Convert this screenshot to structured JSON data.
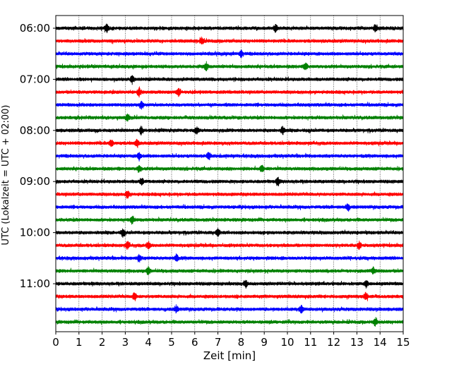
{
  "chart_data": {
    "type": "line",
    "title": "",
    "xlabel": "Zeit  [min]",
    "ylabel": "UTC (Lokalzeit = UTC + 02:00)",
    "xlim": [
      0,
      15
    ],
    "x_ticks": [
      0,
      1,
      2,
      3,
      4,
      5,
      6,
      7,
      8,
      9,
      10,
      11,
      12,
      13,
      14,
      15
    ],
    "x_tick_labels": [
      "0",
      "1",
      "2",
      "3",
      "4",
      "5",
      "6",
      "7",
      "8",
      "9",
      "10",
      "11",
      "12",
      "13",
      "14",
      "15"
    ],
    "y_tick_labels": [
      "06:00",
      "07:00",
      "08:00",
      "09:00",
      "10:00",
      "11:00"
    ],
    "grid": "vertical dotted",
    "trace_colors": [
      "#000000",
      "#ff0000",
      "#0000ff",
      "#008000"
    ],
    "traces": [
      {
        "start": "06:00",
        "color": "#000000",
        "spikes": [
          2.2,
          9.5,
          13.8
        ]
      },
      {
        "start": "06:15",
        "color": "#ff0000",
        "spikes": [
          6.3
        ]
      },
      {
        "start": "06:30",
        "color": "#0000ff",
        "spikes": [
          8.0
        ]
      },
      {
        "start": "06:45",
        "color": "#008000",
        "spikes": [
          6.5,
          10.8
        ]
      },
      {
        "start": "07:00",
        "color": "#000000",
        "spikes": [
          3.3
        ]
      },
      {
        "start": "07:15",
        "color": "#ff0000",
        "spikes": [
          3.6,
          5.3
        ]
      },
      {
        "start": "07:30",
        "color": "#0000ff",
        "spikes": [
          3.7
        ]
      },
      {
        "start": "07:45",
        "color": "#008000",
        "spikes": [
          3.1
        ]
      },
      {
        "start": "08:00",
        "color": "#000000",
        "spikes": [
          3.7,
          6.1,
          9.8
        ]
      },
      {
        "start": "08:15",
        "color": "#ff0000",
        "spikes": [
          2.4,
          3.5
        ]
      },
      {
        "start": "08:30",
        "color": "#0000ff",
        "spikes": [
          3.6,
          6.6
        ]
      },
      {
        "start": "08:45",
        "color": "#008000",
        "spikes": [
          3.6,
          8.9
        ]
      },
      {
        "start": "09:00",
        "color": "#000000",
        "spikes": [
          3.7,
          9.6
        ]
      },
      {
        "start": "09:15",
        "color": "#ff0000",
        "spikes": [
          3.1
        ]
      },
      {
        "start": "09:30",
        "color": "#0000ff",
        "spikes": [
          12.6
        ]
      },
      {
        "start": "09:45",
        "color": "#008000",
        "spikes": [
          3.3
        ]
      },
      {
        "start": "10:00",
        "color": "#000000",
        "spikes": [
          2.9,
          7.0
        ]
      },
      {
        "start": "10:15",
        "color": "#ff0000",
        "spikes": [
          3.1,
          4.0,
          13.1
        ]
      },
      {
        "start": "10:30",
        "color": "#0000ff",
        "spikes": [
          3.6,
          5.2
        ]
      },
      {
        "start": "10:45",
        "color": "#008000",
        "spikes": [
          4.0,
          13.7
        ]
      },
      {
        "start": "11:00",
        "color": "#000000",
        "spikes": [
          8.2,
          13.4
        ]
      },
      {
        "start": "11:15",
        "color": "#ff0000",
        "spikes": [
          3.4,
          13.4
        ]
      },
      {
        "start": "11:30",
        "color": "#0000ff",
        "spikes": [
          5.2,
          10.6
        ]
      },
      {
        "start": "11:45",
        "color": "#008000",
        "spikes": [
          13.8
        ]
      }
    ]
  }
}
